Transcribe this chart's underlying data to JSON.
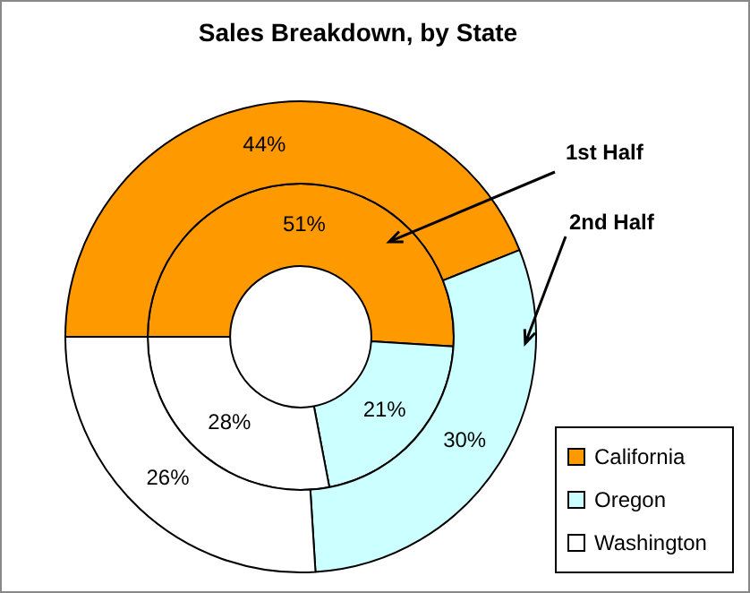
{
  "chart_data": {
    "type": "donut",
    "title": "Sales Breakdown, by State",
    "categories": [
      "California",
      "Oregon",
      "Washington"
    ],
    "colors": [
      "#ff9900",
      "#ccffff",
      "#ffffff"
    ],
    "series": [
      {
        "name": "1st Half",
        "values": [
          51,
          21,
          28
        ],
        "value_labels": [
          "51%",
          "21%",
          "28%"
        ]
      },
      {
        "name": "2nd Half",
        "values": [
          44,
          30,
          26
        ],
        "value_labels": [
          "44%",
          "30%",
          "26%"
        ]
      }
    ],
    "legend": "bottom right"
  }
}
